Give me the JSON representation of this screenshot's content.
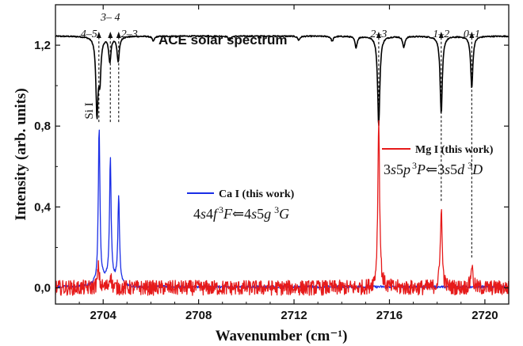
{
  "chart_data": {
    "type": "line",
    "title": "ACE solar spectrum",
    "xlabel": "Wavenumber (cm⁻¹)",
    "ylabel": "Intensity (arb. units)",
    "xlim": [
      2702,
      2721
    ],
    "ylim": [
      -0.08,
      1.4
    ],
    "x_ticks": [
      2704,
      2708,
      2712,
      2716,
      2720
    ],
    "x_tick_labels": [
      "2704",
      "2708",
      "2712",
      "2716",
      "2720"
    ],
    "y_ticks": [
      0.0,
      0.4,
      0.8,
      1.2
    ],
    "y_tick_labels": [
      "0,0",
      "0,4",
      "0,8",
      "1,2"
    ],
    "grid": false,
    "series": [
      {
        "name": "ACE solar spectrum",
        "color": "#000000",
        "baseline": 1.245,
        "lines": [
          {
            "x": 2703.74,
            "y": 0.87
          },
          {
            "x": 2703.86,
            "y": 1.05
          },
          {
            "x": 2704.28,
            "y": 1.12
          },
          {
            "x": 2704.63,
            "y": 1.12
          },
          {
            "x": 2714.6,
            "y": 1.19
          },
          {
            "x": 2715.55,
            "y": 0.8
          },
          {
            "x": 2716.6,
            "y": 1.19
          },
          {
            "x": 2718.17,
            "y": 0.86
          },
          {
            "x": 2719.45,
            "y": 0.99
          },
          {
            "x": 2706.1,
            "y": 1.22
          },
          {
            "x": 2709.3,
            "y": 1.225
          },
          {
            "x": 2712.2,
            "y": 1.225
          },
          {
            "x": 2713.6,
            "y": 1.22
          }
        ]
      },
      {
        "name": "Ca I (this work)",
        "color": "#1a2ee6",
        "peaks": [
          {
            "x": 2703.83,
            "y": 0.77
          },
          {
            "x": 2704.3,
            "y": 0.6
          },
          {
            "x": 2704.65,
            "y": 0.43
          }
        ]
      },
      {
        "name": "Mg I (this work)",
        "color": "#e61a1a",
        "peaks": [
          {
            "x": 2715.55,
            "y": 0.84
          },
          {
            "x": 2718.17,
            "y": 0.4
          },
          {
            "x": 2719.45,
            "y": 0.12
          },
          {
            "x": 2703.8,
            "y": 0.1
          },
          {
            "x": 2704.3,
            "y": 0.07
          }
        ]
      }
    ],
    "annotations": {
      "transitions": [
        {
          "label": "4–5",
          "x": 2703.82
        },
        {
          "label": "3– 4",
          "x": 2704.3
        },
        {
          "label": "2–3",
          "x": 2704.65
        },
        {
          "label": "2–3",
          "x": 2715.55
        },
        {
          "label": "1–2",
          "x": 2718.17
        },
        {
          "label": "0–1",
          "x": 2719.45
        }
      ],
      "si_label": "Si I"
    },
    "legend": [
      {
        "name": "Ca I (this work)",
        "color": "#1a2ee6",
        "term": {
          "p1": "4",
          "p2": "s",
          "p3": "4",
          "p4": "f",
          "s1": "3",
          "L1": "F",
          "arrow": "⇐",
          "p5": "4",
          "p6": "s",
          "p7": "5",
          "p8": "g",
          "s2": "3",
          "L2": "G"
        }
      },
      {
        "name": "Mg I (this work)",
        "color": "#e61a1a",
        "term": {
          "p1": "3",
          "p2": "s",
          "p3": "5",
          "p4": "p",
          "s1": "3",
          "L1": "P",
          "arrow": "⇐",
          "p5": "3",
          "p6": "s",
          "p7": "5",
          "p8": "d",
          "s2": "3",
          "L2": "D"
        }
      }
    ]
  }
}
